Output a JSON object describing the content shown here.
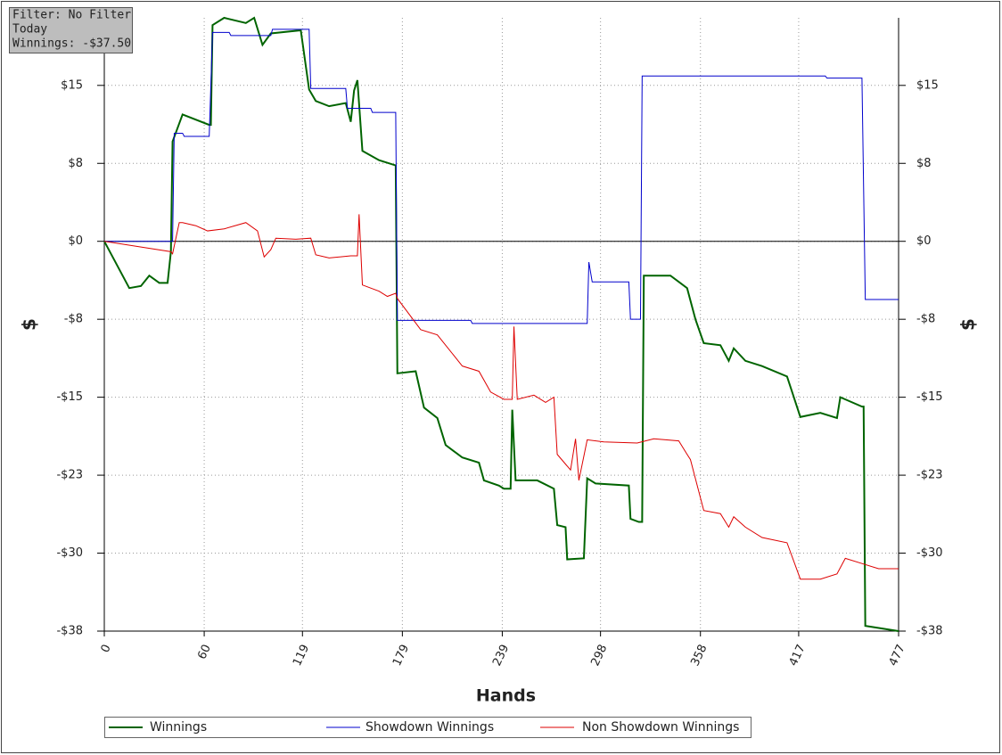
{
  "chart_data": {
    "type": "line",
    "annotations": [
      "Filter: No Filter",
      "Today",
      "Winnings: -$37.50"
    ],
    "xlabel": "Hands",
    "ylabel": "$",
    "y2label": "$",
    "xlim": [
      0,
      477
    ],
    "xticks": [
      0,
      60,
      119,
      179,
      239,
      298,
      358,
      417,
      477
    ],
    "ylim": [
      -37.5,
      21.5
    ],
    "yticks": [
      {
        "value": 15,
        "label": "$15"
      },
      {
        "value": 7.5,
        "label": "$8"
      },
      {
        "value": 0,
        "label": "$0"
      },
      {
        "value": -7.5,
        "label": "-$8"
      },
      {
        "value": -15,
        "label": "-$15"
      },
      {
        "value": -22.5,
        "label": "-$23"
      },
      {
        "value": -30,
        "label": "-$30"
      },
      {
        "value": -37.5,
        "label": "-$38"
      }
    ],
    "y2lim": [
      -37.5,
      21.5
    ],
    "y2ticks": [
      {
        "value": 15,
        "label": "$15"
      },
      {
        "value": 7.5,
        "label": "$8"
      },
      {
        "value": 0,
        "label": "$0"
      },
      {
        "value": -7.5,
        "label": "-$8"
      },
      {
        "value": -15,
        "label": "-$15"
      },
      {
        "value": -22.5,
        "label": "-$23"
      },
      {
        "value": -30,
        "label": "-$30"
      },
      {
        "value": -37.5,
        "label": "-$38"
      }
    ],
    "grid": true,
    "legend": "bottom",
    "series": [
      {
        "name": "Winnings",
        "color": "#006400",
        "x": [
          0,
          5,
          15,
          22,
          27,
          33,
          38,
          40,
          41,
          47,
          63,
          64,
          65,
          72,
          85,
          90,
          95,
          100,
          118,
          123,
          127,
          135,
          145,
          148,
          150,
          152,
          155,
          165,
          175,
          176,
          187,
          192,
          200,
          205,
          215,
          225,
          228,
          237,
          240,
          244,
          245,
          247,
          260,
          270,
          272,
          277,
          278,
          288,
          290,
          295,
          315,
          316,
          321,
          323,
          324,
          340,
          350,
          355,
          360,
          370,
          375,
          378,
          385,
          395,
          410,
          418,
          430,
          440,
          442,
          455,
          456,
          457,
          477
        ],
        "values": [
          0,
          -1.5,
          -4.5,
          -4.3,
          -3.3,
          -4,
          -4,
          -1,
          9.6,
          12.2,
          11.2,
          11.2,
          20.8,
          21.5,
          21,
          21.5,
          18.9,
          20,
          20.3,
          14.6,
          13.5,
          13,
          13.3,
          11.5,
          14.5,
          15.5,
          8.7,
          7.8,
          7.3,
          -12.7,
          -12.5,
          -16,
          -17,
          -19.6,
          -20.8,
          -21.3,
          -23,
          -23.5,
          -23.8,
          -23.8,
          -16.2,
          -23,
          -23,
          -23.8,
          -27.3,
          -27.5,
          -30.6,
          -30.5,
          -22.8,
          -23.3,
          -23.5,
          -26.7,
          -27,
          -27,
          -3.3,
          -3.3,
          -4.5,
          -7.5,
          -9.8,
          -10,
          -11.5,
          -10.3,
          -11.5,
          -12,
          -13,
          -16.9,
          -16.5,
          -17,
          -15,
          -15.9,
          -15.9,
          -37,
          -37.5
        ]
      },
      {
        "name": "Showdown Winnings",
        "color": "#0000cc",
        "x": [
          0,
          41,
          42,
          47,
          48,
          63,
          65,
          75,
          76,
          100,
          101,
          123,
          124,
          145,
          146,
          160,
          161,
          175,
          176,
          220,
          221,
          290,
          291,
          293,
          315,
          316,
          322,
          323,
          433,
          434,
          455,
          457,
          477
        ],
        "values": [
          0,
          0,
          10.4,
          10.4,
          10.1,
          10.1,
          20.1,
          20.1,
          19.8,
          19.8,
          20.4,
          20.4,
          14.7,
          14.7,
          12.8,
          12.8,
          12.4,
          12.4,
          -7.6,
          -7.6,
          -7.9,
          -7.9,
          -2,
          -3.9,
          -3.9,
          -7.5,
          -7.5,
          15.9,
          15.9,
          15.7,
          15.7,
          -5.6,
          -5.6
        ]
      },
      {
        "name": "Non Showdown Winnings",
        "color": "#dd0000",
        "x": [
          0,
          40,
          41,
          45,
          47,
          55,
          62,
          72,
          85,
          92,
          96,
          100,
          103,
          115,
          124,
          127,
          135,
          148,
          152,
          153,
          155,
          165,
          170,
          175,
          176,
          190,
          200,
          210,
          215,
          225,
          232,
          240,
          245,
          246,
          248,
          258,
          265,
          270,
          272,
          280,
          283,
          285,
          290,
          300,
          320,
          330,
          345,
          350,
          352,
          360,
          370,
          375,
          378,
          385,
          395,
          410,
          418,
          430,
          440,
          445,
          455,
          465,
          477
        ],
        "values": [
          0,
          -1,
          -1.2,
          1.8,
          1.8,
          1.5,
          1,
          1.2,
          1.8,
          1,
          -1.5,
          -0.8,
          0.3,
          0.2,
          0.3,
          -1.3,
          -1.6,
          -1.4,
          -1.4,
          2.6,
          -4.2,
          -4.8,
          -5.3,
          -5,
          -5.5,
          -8.5,
          -9,
          -11,
          -12,
          -12.5,
          -14.5,
          -15.2,
          -15.2,
          -8.2,
          -15.2,
          -14.8,
          -15.5,
          -15,
          -20.5,
          -22,
          -19,
          -23,
          -19.1,
          -19.3,
          -19.4,
          -19,
          -19.2,
          -20.5,
          -21,
          -25.9,
          -26.2,
          -27.5,
          -26.5,
          -27.5,
          -28.5,
          -29,
          -32.5,
          -32.5,
          -32,
          -30.5,
          -31,
          -31.5,
          -31.5
        ]
      }
    ]
  }
}
